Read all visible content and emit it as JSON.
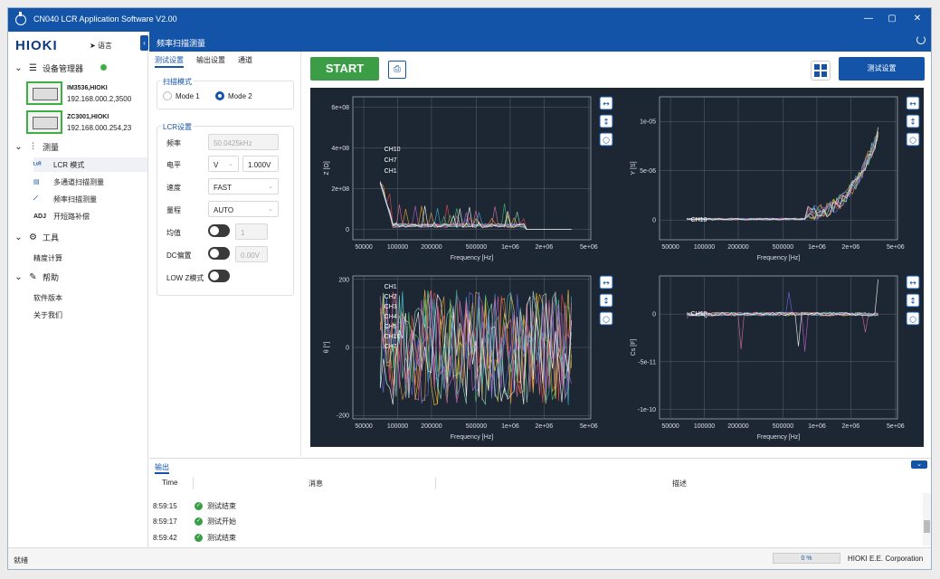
{
  "window": {
    "title": "CN040 LCR Application Software V2.00"
  },
  "sidebar": {
    "logo": "HIOKI",
    "language": "语言",
    "device_manager": "设备管理器",
    "devices": [
      {
        "name": "IM3536,HIOKI",
        "ip": "192.168.000.2,3500"
      },
      {
        "name": "ZC3001,HIOKI",
        "ip": "192.168.000.254,23"
      }
    ],
    "measure": "测量",
    "measure_items": [
      {
        "label": "LCR 模式",
        "icon": "LCR"
      },
      {
        "label": "多通道扫描测量",
        "icon": "multi"
      },
      {
        "label": "频率扫描测量",
        "icon": "sweep"
      },
      {
        "label": "开短路补偿",
        "icon": "ADJ"
      }
    ],
    "tools": "工具",
    "tools_items": [
      "精度计算"
    ],
    "help": "帮助",
    "help_items": [
      "软件版本",
      "关于我们"
    ]
  },
  "main": {
    "title": "频率扫描测量"
  },
  "settings": {
    "tabs": [
      "测试设置",
      "输出设置",
      "通道"
    ],
    "scan_mode": {
      "title": "扫描模式",
      "options": [
        "Mode 1",
        "Mode 2"
      ],
      "selected": "Mode 2"
    },
    "lcr": {
      "title": "LCR设置",
      "freq_label": "频率",
      "freq_value": "50.0425kHz",
      "level_label": "电平",
      "level_unit": "V",
      "level_value": "1.000V",
      "speed_label": "速度",
      "speed_value": "FAST",
      "range_label": "量程",
      "range_value": "AUTO",
      "avg_label": "均值",
      "avg_value": "1",
      "dc_label": "DC偏置",
      "dc_value": "0.00V",
      "lowz_label": "LOW Z模式"
    }
  },
  "toolbar": {
    "start": "START",
    "test_settings": "测试设置"
  },
  "chart_data": [
    {
      "type": "line",
      "ylabel": "Z [Ω]",
      "xlabel": "Frequency [Hz]",
      "xticks": [
        "50000",
        "100000",
        "200000",
        "500000",
        "1e+06",
        "2e+06",
        "5e+06"
      ],
      "yticks": [
        "0",
        "2e+08",
        "4e+08",
        "6e+08"
      ],
      "ylim": [
        -50000000.0,
        650000000.0
      ],
      "series_labels": [
        "CH10",
        "CH7",
        "CH1"
      ]
    },
    {
      "type": "line",
      "ylabel": "Y [S]",
      "xlabel": "Frequency [Hz]",
      "xticks": [
        "50000",
        "100000",
        "200000",
        "500000",
        "1e+06",
        "2e+06",
        "5e+06"
      ],
      "yticks": [
        "0",
        "5e-06",
        "1e-05"
      ],
      "ylim": [
        -2e-06,
        1.25e-05
      ],
      "series_labels": [
        "CH10"
      ]
    },
    {
      "type": "line",
      "ylabel": "θ [°]",
      "xlabel": "Frequency [Hz]",
      "xticks": [
        "50000",
        "100000",
        "200000",
        "500000",
        "1e+06",
        "2e+06",
        "5e+06"
      ],
      "yticks": [
        "-200",
        "0",
        "200"
      ],
      "ylim": [
        -210,
        210
      ],
      "series_labels": [
        "CH1",
        "CH2",
        "CH3",
        "CH4",
        "CH5",
        "CH10",
        "CH7"
      ]
    },
    {
      "type": "line",
      "ylabel": "Cs [F]",
      "xlabel": "Frequency [Hz]",
      "xticks": [
        "50000",
        "100000",
        "200000",
        "500000",
        "1e+06",
        "2e+06",
        "5e+06"
      ],
      "yticks": [
        "0",
        "-5e-11",
        "-1e-10"
      ],
      "ylim": [
        -1.1e-10,
        4e-11
      ],
      "series_labels": [
        "CH10"
      ]
    }
  ],
  "output": {
    "title": "输出",
    "col_time": "Time",
    "col_msg": "消息",
    "col_desc": "描述",
    "rows": [
      {
        "time": "8:59:15",
        "msg": "测试结束"
      },
      {
        "time": "8:59:17",
        "msg": "测试开始"
      },
      {
        "time": "8:59:42",
        "msg": "测试结束"
      }
    ]
  },
  "status": {
    "text": "就绪",
    "progress": "0 %",
    "company": "HIOKI E.E. Corporation"
  }
}
